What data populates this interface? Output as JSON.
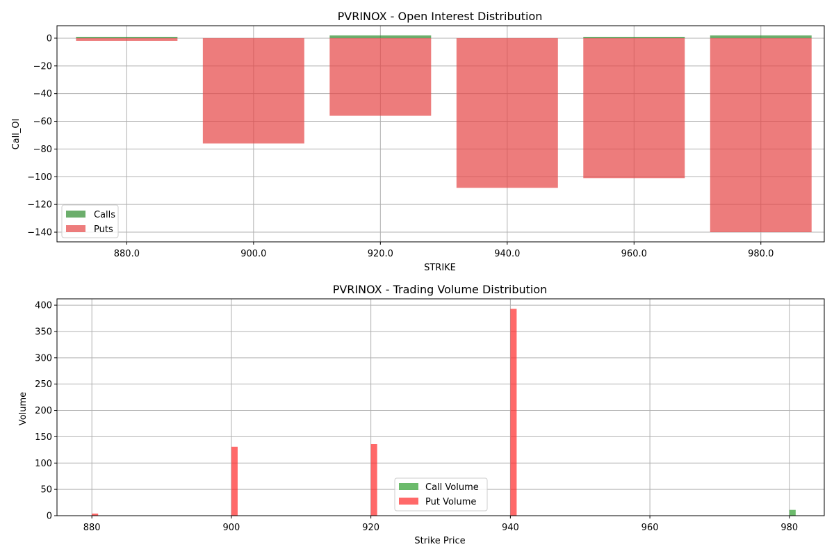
{
  "chart_data": [
    {
      "type": "bar",
      "title": "PVRINOX - Open Interest Distribution",
      "xlabel": "STRIKE",
      "ylabel": "Call_OI",
      "categories": [
        "880.0",
        "900.0",
        "920.0",
        "940.0",
        "960.0",
        "980.0"
      ],
      "x": [
        880,
        900,
        920,
        940,
        960,
        980
      ],
      "xlim": [
        869,
        990
      ],
      "ylim": [
        -147,
        9
      ],
      "yticks": [
        0,
        -20,
        -40,
        -60,
        -80,
        -100,
        -120,
        -140
      ],
      "grid": true,
      "legend_position": "lower-left",
      "series": [
        {
          "name": "Calls",
          "values": [
            1,
            0,
            2,
            0,
            1,
            2
          ],
          "color": "#2e8b2e",
          "opacity": 0.7
        },
        {
          "name": "Puts",
          "values": [
            -2,
            -76,
            -56,
            -108,
            -101,
            -140
          ],
          "color": "#e64545",
          "opacity": 0.7
        }
      ]
    },
    {
      "type": "bar",
      "title": "PVRINOX - Trading Volume Distribution",
      "xlabel": "Strike Price",
      "ylabel": "Volume",
      "x": [
        880,
        900,
        920,
        940,
        960,
        980
      ],
      "xticks": [
        "880",
        "900",
        "920",
        "940",
        "960",
        "980"
      ],
      "xlim": [
        875,
        985
      ],
      "ylim": [
        0,
        412
      ],
      "yticks": [
        0,
        50,
        100,
        150,
        200,
        250,
        300,
        350,
        400
      ],
      "grid": true,
      "legend_position": "lower-center",
      "series": [
        {
          "name": "Call Volume",
          "values": [
            0,
            0,
            0,
            0,
            0,
            11
          ],
          "color": "#2e9e2e",
          "opacity": 0.7
        },
        {
          "name": "Put Volume",
          "values": [
            4,
            131,
            136,
            393,
            0,
            0
          ],
          "color": "#ff2a2a",
          "opacity": 0.7
        }
      ]
    }
  ]
}
